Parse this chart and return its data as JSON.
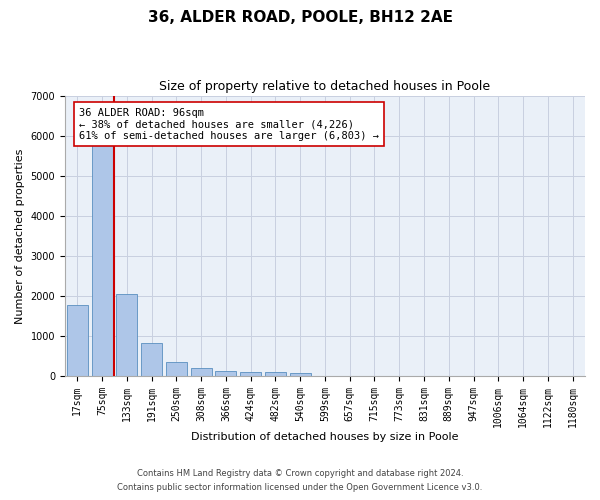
{
  "title1": "36, ALDER ROAD, POOLE, BH12 2AE",
  "title2": "Size of property relative to detached houses in Poole",
  "xlabel": "Distribution of detached houses by size in Poole",
  "ylabel": "Number of detached properties",
  "categories": [
    "17sqm",
    "75sqm",
    "133sqm",
    "191sqm",
    "250sqm",
    "308sqm",
    "366sqm",
    "424sqm",
    "482sqm",
    "540sqm",
    "599sqm",
    "657sqm",
    "715sqm",
    "773sqm",
    "831sqm",
    "889sqm",
    "947sqm",
    "1006sqm",
    "1064sqm",
    "1122sqm",
    "1180sqm"
  ],
  "values": [
    1780,
    5780,
    2060,
    820,
    340,
    195,
    115,
    105,
    100,
    80,
    0,
    0,
    0,
    0,
    0,
    0,
    0,
    0,
    0,
    0,
    0
  ],
  "bar_color": "#aec6e8",
  "bar_edge_color": "#5a8fc0",
  "vline_color": "#cc0000",
  "annotation_text": "36 ALDER ROAD: 96sqm\n← 38% of detached houses are smaller (4,226)\n61% of semi-detached houses are larger (6,803) →",
  "annotation_box_color": "#ffffff",
  "annotation_box_edge": "#cc0000",
  "ylim": [
    0,
    7000
  ],
  "yticks": [
    0,
    1000,
    2000,
    3000,
    4000,
    5000,
    6000,
    7000
  ],
  "plot_bg_color": "#eaf0f8",
  "footer1": "Contains HM Land Registry data © Crown copyright and database right 2024.",
  "footer2": "Contains public sector information licensed under the Open Government Licence v3.0.",
  "title_fontsize": 11,
  "subtitle_fontsize": 9,
  "axis_label_fontsize": 8,
  "tick_fontsize": 7,
  "annotation_fontsize": 7.5
}
